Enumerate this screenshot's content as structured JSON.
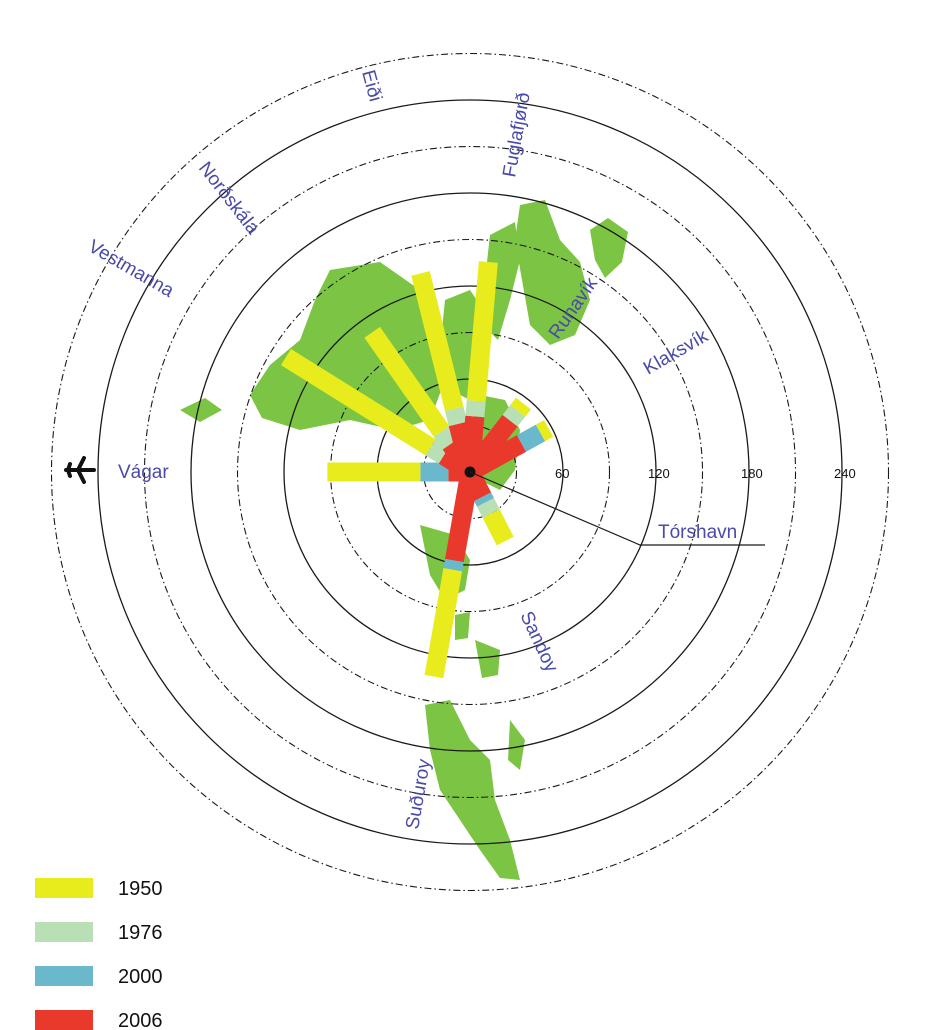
{
  "colors": {
    "1950": "#e8ec1c",
    "1976": "#b9dfb4",
    "2000": "#6ab8cc",
    "2006": "#e8392c",
    "land": "#7cc443",
    "label": "#4a4aa8"
  },
  "icon": "airplane-icon",
  "hub_label": "Tórshavn",
  "chart_data": {
    "type": "radial-bar",
    "scale_unit": "",
    "rings": [
      0,
      30,
      60,
      90,
      120,
      150,
      180,
      210,
      240,
      270
    ],
    "tick_labels": [
      "60",
      "120",
      "180",
      "240"
    ],
    "series": [
      {
        "name": "1950"
      },
      {
        "name": "1976"
      },
      {
        "name": "2000"
      },
      {
        "name": "2006"
      }
    ],
    "spokes": [
      {
        "name": "Vágar",
        "angle_deg": 180,
        "values": {
          "2006": 14,
          "2000": 32,
          "1976": 32,
          "1950": 92
        }
      },
      {
        "name": "Vestmanna",
        "angle_deg": 148,
        "values": {
          "2006": 20,
          "1976": 30,
          "1950": 140
        }
      },
      {
        "name": "Norðskála",
        "angle_deg": 125,
        "values": {
          "2006": 22,
          "1976": 32,
          "1950": 110
        }
      },
      {
        "name": "Eiði",
        "angle_deg": 104,
        "values": {
          "2006": 32,
          "1976": 42,
          "1950": 132
        }
      },
      {
        "name": "Fuglafjørð",
        "angle_deg": 85,
        "values": {
          "2006": 36,
          "1976": 46,
          "1950": 136
        }
      },
      {
        "name": "Runavík",
        "angle_deg": 52,
        "values": {
          "2006": 42,
          "1976": 50,
          "1950": 56
        }
      },
      {
        "name": "Klaksvík",
        "angle_deg": 29,
        "values": {
          "2006": 38,
          "2000": 52,
          "1950": 58
        }
      },
      {
        "name": "Sandoy",
        "angle_deg": -63,
        "values": {
          "2006": 18,
          "2000": 22,
          "1976": 30,
          "1950": 50
        }
      },
      {
        "name": "Suðuroy",
        "angle_deg": -100,
        "values": {
          "2006": 58,
          "2000": 64,
          "1950": 134
        }
      }
    ]
  },
  "legend": [
    {
      "key": "1950",
      "label": "1950"
    },
    {
      "key": "1976",
      "label": "1976"
    },
    {
      "key": "2000",
      "label": "2000"
    },
    {
      "key": "2006",
      "label": "2006"
    }
  ]
}
